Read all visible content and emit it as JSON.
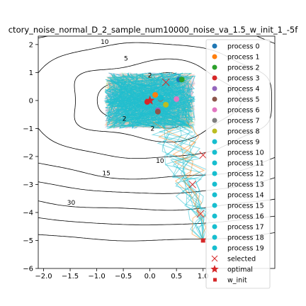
{
  "chart_data": {
    "type": "line",
    "title": "ctory_noise_normal_D_2_sample_num10000_noise_va_1.5_w_init_1_-5f",
    "xlabel": "",
    "ylabel": "",
    "xlim": [
      -2.1,
      2.35
    ],
    "ylim": [
      -6.0,
      2.3
    ],
    "xticks": [
      -2.0,
      -1.5,
      -1.0,
      -0.5,
      0.0,
      0.5,
      1.0
    ],
    "xtick_labels": [
      "−2.0",
      "−1.5",
      "−1.0",
      "−0.5",
      "0.0",
      "0.5",
      "1.0"
    ],
    "yticks": [
      2,
      1,
      0,
      -1,
      -2,
      -3,
      -4,
      -5,
      -6
    ],
    "ytick_labels": [
      "2",
      "1",
      "0",
      "−1",
      "−2",
      "−3",
      "−4",
      "−5",
      "−6"
    ],
    "grid": false,
    "legend_position": "right",
    "contour_levels": [
      {
        "label": "2",
        "x": 0.0,
        "y": 0.9
      },
      {
        "label": "2",
        "x": -0.48,
        "y": -0.65
      },
      {
        "label": "2",
        "x": 0.05,
        "y": -1.0
      },
      {
        "label": "5",
        "x": -0.45,
        "y": 1.5
      },
      {
        "label": "10",
        "x": -0.85,
        "y": 2.1
      },
      {
        "label": "10",
        "x": 0.19,
        "y": -2.15
      },
      {
        "label": "15",
        "x": -0.82,
        "y": -2.6
      },
      {
        "label": "30",
        "x": -1.48,
        "y": -3.65
      }
    ],
    "series": [
      {
        "name": "process 0",
        "color": "#1f77b4",
        "final": [
          0.55,
          0.75
        ]
      },
      {
        "name": "process 1",
        "color": "#ff7f0e",
        "final": [
          0.1,
          0.2
        ]
      },
      {
        "name": "process 2",
        "color": "#2ca02c",
        "final": [
          0.6,
          0.75
        ]
      },
      {
        "name": "process 3",
        "color": "#d62728",
        "final": [
          -0.05,
          -0.05
        ]
      },
      {
        "name": "process 4",
        "color": "#9467bd",
        "final": [
          0.15,
          -0.35
        ]
      },
      {
        "name": "process 5",
        "color": "#8c564b",
        "final": [
          0.15,
          -0.4
        ]
      },
      {
        "name": "process 6",
        "color": "#e377c2",
        "final": [
          0.5,
          0.05
        ]
      },
      {
        "name": "process 7",
        "color": "#7f7f7f",
        "final": [
          0.2,
          0.05
        ]
      },
      {
        "name": "process 8",
        "color": "#bcbd22",
        "final": [
          0.3,
          -0.15
        ]
      },
      {
        "name": "process 9",
        "color": "#17becf",
        "final": [
          0.2,
          0.1
        ]
      },
      {
        "name": "process 10",
        "color": "#17becf",
        "final": [
          0.2,
          0.1
        ]
      },
      {
        "name": "process 11",
        "color": "#17becf",
        "final": [
          0.2,
          0.1
        ]
      },
      {
        "name": "process 12",
        "color": "#17becf",
        "final": [
          0.2,
          0.1
        ]
      },
      {
        "name": "process 13",
        "color": "#17becf",
        "final": [
          0.2,
          0.1
        ]
      },
      {
        "name": "process 14",
        "color": "#17becf",
        "final": [
          0.2,
          0.1
        ]
      },
      {
        "name": "process 15",
        "color": "#17becf",
        "final": [
          0.2,
          0.1
        ]
      },
      {
        "name": "process 16",
        "color": "#17becf",
        "final": [
          0.2,
          0.1
        ]
      },
      {
        "name": "process 17",
        "color": "#17becf",
        "final": [
          0.2,
          0.1
        ]
      },
      {
        "name": "process 18",
        "color": "#17becf",
        "final": [
          0.2,
          0.1
        ]
      },
      {
        "name": "process 19",
        "color": "#17becf",
        "final": [
          0.2,
          0.1
        ]
      }
    ],
    "selected": {
      "name": "selected",
      "color": "#d62728",
      "points": [
        [
          0.3,
          0.65
        ],
        [
          1.0,
          -1.95
        ],
        [
          0.8,
          -3.0
        ],
        [
          0.95,
          -4.05
        ]
      ]
    },
    "optimal": {
      "name": "optimal",
      "color": "#d62728",
      "point": [
        0.0,
        0.0
      ]
    },
    "w_init": {
      "name": "w_init",
      "color": "#d62728",
      "point": [
        1.0,
        -5.0
      ]
    },
    "cloud": {
      "x_range": [
        -0.85,
        0.85
      ],
      "y_range": [
        -1.0,
        1.0
      ],
      "color": "#17becf"
    }
  }
}
